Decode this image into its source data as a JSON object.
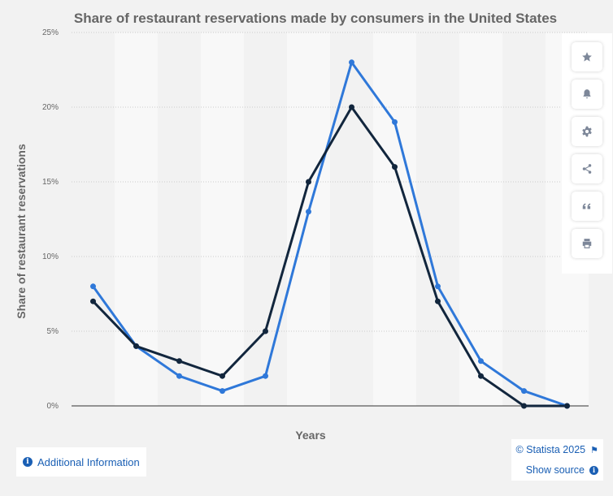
{
  "chart_data": {
    "type": "line",
    "title": "Share of restaurant reservations made by consumers in the United States",
    "xlabel": "Years",
    "ylabel": "Share of restaurant reservations",
    "ylim": [
      0,
      25
    ],
    "yticks": [
      "0%",
      "5%",
      "10%",
      "15%",
      "20%",
      "25%"
    ],
    "x_ticks_labeled": false,
    "x": [
      1,
      2,
      3,
      4,
      5,
      6,
      7,
      8,
      9,
      10,
      11,
      12
    ],
    "series": [
      {
        "color": "#2f78d9",
        "values": [
          8,
          4,
          2,
          1,
          2,
          13,
          23,
          19,
          8,
          3,
          1,
          0
        ]
      },
      {
        "color": "#12263d",
        "values": [
          7,
          4,
          3,
          2,
          5,
          15,
          20,
          16,
          7,
          2,
          0,
          0
        ]
      }
    ],
    "grid": true,
    "legend": "none"
  },
  "toolbar": {
    "icons": [
      "star-icon",
      "bell-icon",
      "gear-icon",
      "share-icon",
      "quote-icon",
      "print-icon"
    ]
  },
  "footer": {
    "additional_info_label": "Additional Information",
    "copyright": "© Statista 2025",
    "show_source_label": "Show source"
  },
  "colors": {
    "background": "#f2f2f2",
    "link": "#1a5fb4",
    "series_1": "#2f78d9",
    "series_2": "#12263d"
  }
}
